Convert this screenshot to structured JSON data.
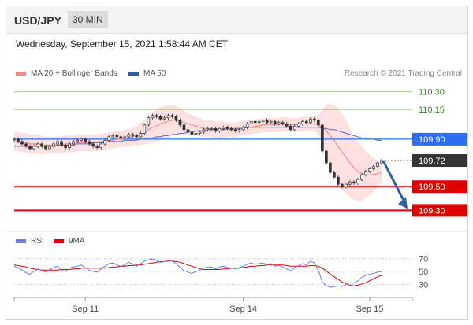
{
  "header": {
    "pair": "USD/JPY",
    "timeframe": "30 MIN"
  },
  "datetime": "Wednesday, September 15, 2021 1:58:44 AM CET",
  "legend": [
    {
      "label": "MA 20 + Bollinger Bands",
      "color": "#f28c8c"
    },
    {
      "label": "MA 50",
      "color": "#2e5f9e"
    }
  ],
  "credit": "Research © 2021 Trading Central",
  "rsi_legend": [
    {
      "label": "RSI",
      "color": "#6f7fe0"
    },
    {
      "label": "9MA",
      "color": "#e00000"
    }
  ],
  "chart_data": [
    {
      "type": "candlestick",
      "title": "USD/JPY",
      "ylim": [
        109.13,
        110.41
      ],
      "x_ticks": [
        "Sep 11",
        "Sep 14",
        "Sep 15"
      ],
      "levels": [
        {
          "label": "110.30",
          "value": 110.3,
          "style": "resistance-thin",
          "color": "#9bd07a",
          "text_color": "#3a8c1a"
        },
        {
          "label": "110.15",
          "value": 110.15,
          "style": "resistance-thin",
          "color": "#9bd07a",
          "text_color": "#3a8c1a"
        },
        {
          "label": "109.90",
          "value": 109.9,
          "style": "pivot",
          "color": "#2b6ff0",
          "text_color": "#ffffff"
        },
        {
          "label": "109.72",
          "value": 109.72,
          "style": "last-price",
          "color": "#333333",
          "text_color": "#ffffff"
        },
        {
          "label": "109.50",
          "value": 109.5,
          "style": "support",
          "color": "#e00000",
          "text_color": "#ffffff"
        },
        {
          "label": "109.30",
          "value": 109.3,
          "style": "support",
          "color": "#e00000",
          "text_color": "#ffffff"
        }
      ],
      "close": [
        109.9,
        109.88,
        109.86,
        109.84,
        109.82,
        109.84,
        109.86,
        109.84,
        109.82,
        109.84,
        109.86,
        109.88,
        109.85,
        109.83,
        109.86,
        109.88,
        109.89,
        109.9,
        109.88,
        109.86,
        109.84,
        109.83,
        109.86,
        109.89,
        109.92,
        109.93,
        109.92,
        109.91,
        109.92,
        109.94,
        109.93,
        109.92,
        109.95,
        110.02,
        110.08,
        110.1,
        110.09,
        110.07,
        110.08,
        110.1,
        110.09,
        110.06,
        110.02,
        109.98,
        109.96,
        109.94,
        109.95,
        109.96,
        109.98,
        109.99,
        109.99,
        109.97,
        109.99,
        110.0,
        109.99,
        109.98,
        109.97,
        109.98,
        110.0,
        110.03,
        110.05,
        110.04,
        110.05,
        110.06,
        110.04,
        110.05,
        110.03,
        110.04,
        110.03,
        110.01,
        109.98,
        110.01,
        110.03,
        110.05,
        110.04,
        110.07,
        110.06,
        110.02,
        109.8,
        109.7,
        109.62,
        109.58,
        109.52,
        109.5,
        109.52,
        109.54,
        109.53,
        109.56,
        109.6,
        109.63,
        109.65,
        109.67,
        109.7,
        109.72
      ],
      "ma20": [
        109.88,
        109.88,
        109.87,
        109.87,
        109.86,
        109.86,
        109.86,
        109.85,
        109.85,
        109.85,
        109.85,
        109.85,
        109.85,
        109.86,
        109.86,
        109.86,
        109.87,
        109.87,
        109.87,
        109.87,
        109.87,
        109.87,
        109.88,
        109.88,
        109.89,
        109.89,
        109.9,
        109.9,
        109.91,
        109.91,
        109.92,
        109.93,
        109.94,
        109.96,
        109.98,
        110.0,
        110.01,
        110.03,
        110.04,
        110.05,
        110.06,
        110.06,
        110.05,
        110.04,
        110.03,
        110.02,
        110.01,
        110.0,
        109.99,
        109.99,
        109.99,
        109.98,
        109.98,
        109.98,
        109.98,
        109.98,
        109.98,
        109.99,
        109.99,
        110.0,
        110.0,
        110.01,
        110.01,
        110.02,
        110.02,
        110.02,
        110.02,
        110.02,
        110.03,
        110.02,
        110.02,
        110.02,
        110.02,
        110.03,
        110.03,
        110.03,
        110.03,
        110.02,
        110.0,
        109.97,
        109.93,
        109.89,
        109.84,
        109.79,
        109.75,
        109.7,
        109.66,
        109.63,
        109.61,
        109.6,
        109.6,
        109.6,
        109.61,
        109.62
      ],
      "bb_width": [
        0.08,
        0.08,
        0.08,
        0.08,
        0.08,
        0.08,
        0.08,
        0.08,
        0.07,
        0.07,
        0.07,
        0.07,
        0.07,
        0.07,
        0.07,
        0.07,
        0.07,
        0.07,
        0.07,
        0.07,
        0.07,
        0.07,
        0.07,
        0.07,
        0.07,
        0.07,
        0.07,
        0.07,
        0.07,
        0.07,
        0.07,
        0.08,
        0.09,
        0.1,
        0.12,
        0.13,
        0.14,
        0.14,
        0.14,
        0.14,
        0.13,
        0.12,
        0.11,
        0.1,
        0.09,
        0.08,
        0.08,
        0.08,
        0.07,
        0.07,
        0.07,
        0.07,
        0.07,
        0.07,
        0.06,
        0.06,
        0.06,
        0.06,
        0.06,
        0.06,
        0.06,
        0.06,
        0.06,
        0.06,
        0.06,
        0.06,
        0.06,
        0.06,
        0.06,
        0.06,
        0.06,
        0.06,
        0.06,
        0.06,
        0.06,
        0.06,
        0.06,
        0.08,
        0.15,
        0.22,
        0.27,
        0.3,
        0.32,
        0.32,
        0.31,
        0.29,
        0.27,
        0.25,
        0.23,
        0.2,
        0.17,
        0.14,
        0.11,
        0.09
      ],
      "ma50": [
        109.84,
        109.84,
        109.84,
        109.84,
        109.84,
        109.84,
        109.84,
        109.84,
        109.84,
        109.84,
        109.84,
        109.85,
        109.85,
        109.85,
        109.85,
        109.85,
        109.86,
        109.86,
        109.86,
        109.86,
        109.87,
        109.87,
        109.87,
        109.87,
        109.88,
        109.88,
        109.88,
        109.88,
        109.89,
        109.89,
        109.89,
        109.89,
        109.9,
        109.9,
        109.91,
        109.91,
        109.92,
        109.92,
        109.93,
        109.93,
        109.94,
        109.94,
        109.95,
        109.95,
        109.96,
        109.96,
        109.97,
        109.97,
        109.97,
        109.98,
        109.98,
        109.98,
        109.98,
        109.98,
        109.99,
        109.99,
        109.99,
        109.99,
        109.99,
        110.0,
        110.0,
        110.0,
        110.0,
        110.0,
        110.0,
        110.0,
        110.0,
        110.0,
        110.0,
        110.0,
        110.0,
        110.0,
        110.0,
        110.0,
        110.0,
        110.0,
        110.0,
        110.0,
        109.99,
        109.99,
        109.98,
        109.98,
        109.97,
        109.96,
        109.95,
        109.94,
        109.93,
        109.92,
        109.91,
        109.91,
        109.9,
        109.9,
        109.89,
        109.89
      ],
      "forecast_arrow": {
        "from": 109.72,
        "to": 109.3
      }
    },
    {
      "type": "line",
      "title": "RSI",
      "ylim": [
        20,
        80
      ],
      "y_ticks": [
        70,
        50,
        30
      ],
      "series": [
        {
          "name": "RSI",
          "color": "#6f7fe0",
          "values": [
            58,
            56,
            52,
            48,
            46,
            50,
            54,
            51,
            49,
            53,
            56,
            58,
            52,
            50,
            55,
            57,
            58,
            60,
            56,
            52,
            50,
            49,
            54,
            58,
            62,
            63,
            60,
            58,
            60,
            64,
            61,
            58,
            62,
            66,
            68,
            69,
            67,
            64,
            65,
            67,
            66,
            62,
            56,
            51,
            49,
            47,
            50,
            52,
            55,
            57,
            57,
            54,
            57,
            58,
            56,
            55,
            54,
            56,
            58,
            61,
            63,
            61,
            62,
            63,
            60,
            62,
            58,
            59,
            57,
            54,
            51,
            56,
            59,
            62,
            60,
            66,
            63,
            52,
            34,
            28,
            26,
            27,
            28,
            27,
            30,
            33,
            32,
            36,
            41,
            44,
            46,
            47,
            49,
            50
          ]
        },
        {
          "name": "9MA",
          "color": "#e00000",
          "values": [
            60,
            59,
            58,
            57,
            55,
            54,
            53,
            52,
            52,
            52,
            52,
            52,
            53,
            53,
            53,
            54,
            54,
            55,
            55,
            55,
            55,
            55,
            55,
            55,
            56,
            57,
            57,
            58,
            58,
            59,
            59,
            60,
            60,
            61,
            62,
            63,
            64,
            65,
            65,
            66,
            66,
            65,
            64,
            62,
            60,
            58,
            56,
            54,
            53,
            53,
            53,
            53,
            53,
            54,
            54,
            55,
            55,
            55,
            56,
            57,
            58,
            58,
            59,
            59,
            60,
            60,
            60,
            60,
            60,
            59,
            58,
            58,
            58,
            58,
            58,
            59,
            59,
            58,
            55,
            51,
            46,
            42,
            38,
            34,
            31,
            29,
            28,
            29,
            31,
            33,
            36,
            39,
            42,
            44
          ]
        }
      ]
    }
  ]
}
